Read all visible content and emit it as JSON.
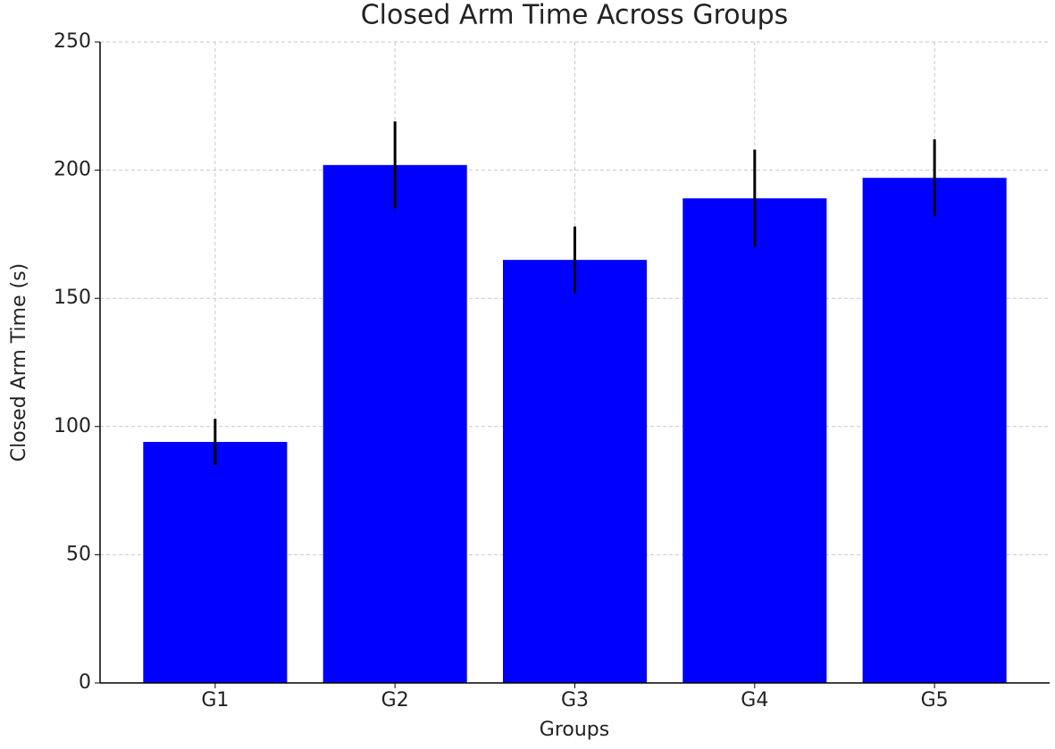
{
  "chart_data": {
    "type": "bar",
    "title": "Closed Arm Time Across Groups",
    "xlabel": "Groups",
    "ylabel": "Closed Arm Time (s)",
    "categories": [
      "G1",
      "G2",
      "G3",
      "G4",
      "G5"
    ],
    "values": [
      94,
      202,
      165,
      189,
      197
    ],
    "errors": [
      9,
      17,
      13,
      19,
      15
    ],
    "color": "#0000ff",
    "error_color": "#000000",
    "ylim": [
      0,
      250
    ],
    "yticks": [
      0,
      50,
      100,
      150,
      200,
      250
    ],
    "grid": true
  }
}
